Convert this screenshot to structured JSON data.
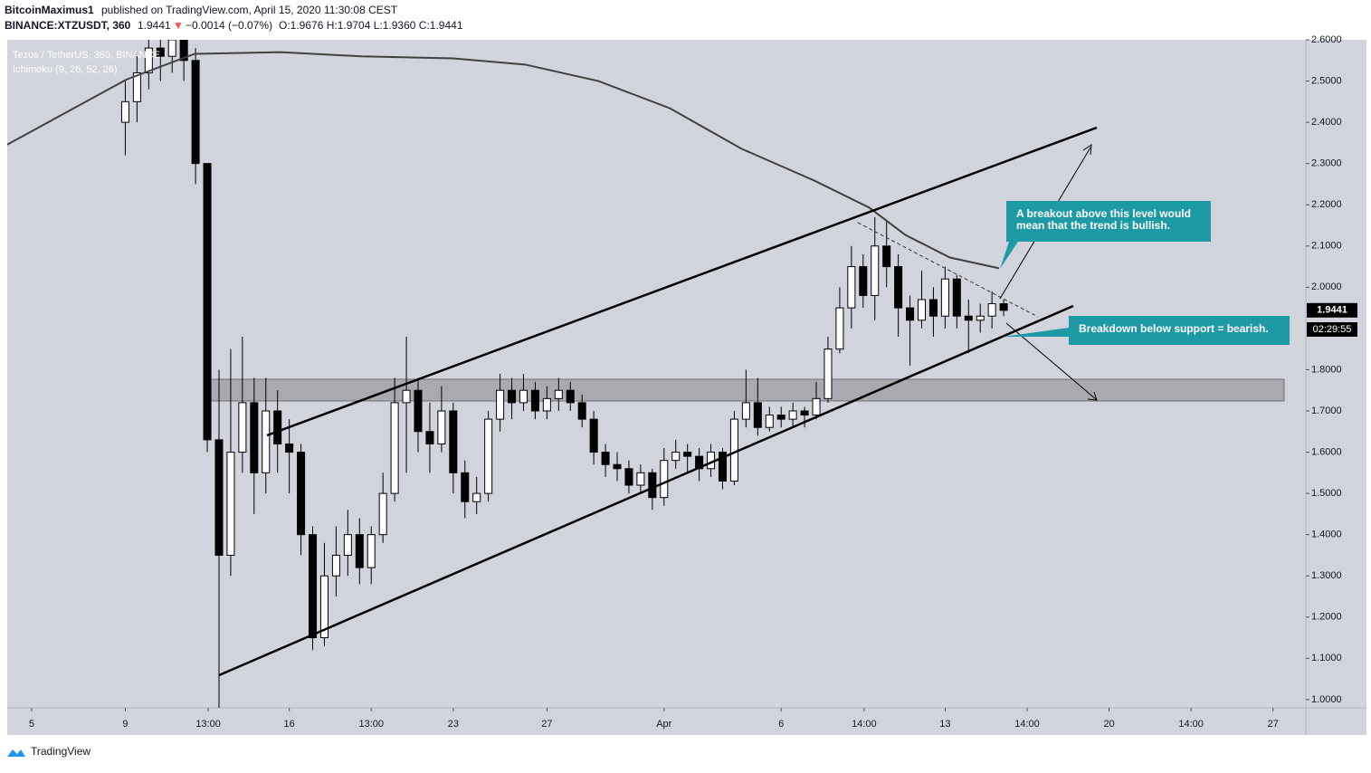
{
  "header": {
    "author": "BitcoinMaximus1",
    "published": "published on TradingView.com, April 15, 2020 11:30:08 CEST",
    "symbol": "BINANCE:XTZUSDT, 360",
    "last": "1.9441",
    "arrow": "▼",
    "change": "−0.0014 (−0.07%)",
    "ohlc": "O:1.9676 H:1.9704 L:1.9360 C:1.9441"
  },
  "legend": {
    "series": "Tezos / TetherUS, 360, BINANCE",
    "indicator": "Ichimoku (9, 26, 52, 26)"
  },
  "annotations": {
    "bullish": [
      "A breakout above this level would",
      "mean that the trend is bullish."
    ],
    "bearish": "Breakdown below support = bearish."
  },
  "countdown": "02:29:55",
  "footer": {
    "logo": "TradingView"
  },
  "chart_data": {
    "type": "candlestick",
    "x": [
      4,
      4.5,
      5,
      5.5,
      6,
      6.5,
      7,
      7.5,
      8,
      8.5,
      9,
      9.5,
      10,
      10.5,
      11,
      11.5,
      12,
      12.5,
      13,
      13.5,
      14,
      14.5,
      15,
      15.5,
      16,
      16.5,
      17,
      17.5,
      18,
      18.5,
      19,
      19.5,
      20,
      20.5,
      21,
      21.5,
      22,
      22.5,
      23,
      23.5,
      24,
      24.5,
      25,
      25.5,
      26,
      26.5,
      27,
      27.5,
      28,
      28.5,
      29,
      29.5,
      30,
      30.5,
      31,
      31.5,
      32,
      32.5,
      33,
      33.5,
      34,
      34.5,
      35,
      35.5,
      36,
      36.5,
      37,
      37.5,
      38,
      38.5,
      39,
      39.5,
      40,
      40.5,
      41,
      41.5
    ],
    "open": [
      2.4,
      2.45,
      2.52,
      2.58,
      2.56,
      2.6,
      2.55,
      2.3,
      1.63,
      1.35,
      1.6,
      1.72,
      1.55,
      1.7,
      1.62,
      1.6,
      1.4,
      1.15,
      1.3,
      1.35,
      1.4,
      1.32,
      1.4,
      1.5,
      1.72,
      1.75,
      1.65,
      1.62,
      1.7,
      1.55,
      1.48,
      1.5,
      1.68,
      1.75,
      1.72,
      1.75,
      1.7,
      1.73,
      1.75,
      1.72,
      1.68,
      1.6,
      1.57,
      1.56,
      1.52,
      1.55,
      1.49,
      1.58,
      1.6,
      1.59,
      1.56,
      1.6,
      1.53,
      1.68,
      1.72,
      1.66,
      1.69,
      1.68,
      1.7,
      1.69,
      1.73,
      1.85,
      1.95,
      2.05,
      1.98,
      2.1,
      2.05,
      1.95,
      1.92,
      1.97,
      1.93,
      2.02,
      1.93,
      1.92,
      1.93,
      1.96
    ],
    "high": [
      2.5,
      2.57,
      2.62,
      2.62,
      2.63,
      2.63,
      2.58,
      2.3,
      1.8,
      1.85,
      1.88,
      1.78,
      1.78,
      1.75,
      1.68,
      1.62,
      1.42,
      1.38,
      1.42,
      1.46,
      1.44,
      1.42,
      1.55,
      1.78,
      1.88,
      1.78,
      1.72,
      1.76,
      1.72,
      1.58,
      1.54,
      1.7,
      1.79,
      1.78,
      1.79,
      1.77,
      1.76,
      1.78,
      1.77,
      1.74,
      1.7,
      1.62,
      1.6,
      1.58,
      1.57,
      1.56,
      1.61,
      1.63,
      1.62,
      1.61,
      1.62,
      1.61,
      1.7,
      1.8,
      1.78,
      1.71,
      1.71,
      1.72,
      1.71,
      1.77,
      1.88,
      2.0,
      2.1,
      2.08,
      2.17,
      2.16,
      2.08,
      1.98,
      2.04,
      2.0,
      2.05,
      2.03,
      1.97,
      1.96,
      1.99,
      1.97
    ],
    "low": [
      2.32,
      2.4,
      2.48,
      2.5,
      2.52,
      2.5,
      2.25,
      1.6,
      0.98,
      1.3,
      1.55,
      1.45,
      1.5,
      1.55,
      1.5,
      1.35,
      1.12,
      1.13,
      1.25,
      1.3,
      1.28,
      1.28,
      1.38,
      1.48,
      1.55,
      1.6,
      1.55,
      1.6,
      1.5,
      1.44,
      1.45,
      1.48,
      1.65,
      1.68,
      1.7,
      1.68,
      1.68,
      1.7,
      1.7,
      1.66,
      1.57,
      1.54,
      1.53,
      1.5,
      1.5,
      1.46,
      1.47,
      1.56,
      1.55,
      1.53,
      1.54,
      1.51,
      1.52,
      1.66,
      1.64,
      1.65,
      1.66,
      1.66,
      1.66,
      1.68,
      1.72,
      1.84,
      1.9,
      1.95,
      1.92,
      2.0,
      1.88,
      1.81,
      1.9,
      1.88,
      1.9,
      1.9,
      1.84,
      1.89,
      1.9,
      1.93
    ],
    "close": [
      2.45,
      2.52,
      2.58,
      2.56,
      2.6,
      2.55,
      2.3,
      1.63,
      1.35,
      1.6,
      1.72,
      1.55,
      1.7,
      1.62,
      1.6,
      1.4,
      1.15,
      1.3,
      1.35,
      1.4,
      1.32,
      1.4,
      1.5,
      1.72,
      1.75,
      1.65,
      1.62,
      1.7,
      1.55,
      1.48,
      1.5,
      1.68,
      1.75,
      1.72,
      1.75,
      1.7,
      1.73,
      1.75,
      1.72,
      1.68,
      1.6,
      1.57,
      1.56,
      1.52,
      1.55,
      1.49,
      1.58,
      1.6,
      1.59,
      1.56,
      1.6,
      1.53,
      1.68,
      1.72,
      1.66,
      1.69,
      1.68,
      1.7,
      1.69,
      1.73,
      1.85,
      1.95,
      2.05,
      1.98,
      2.1,
      2.05,
      1.95,
      1.92,
      1.97,
      1.93,
      2.02,
      1.93,
      1.92,
      1.93,
      1.96,
      1.944
    ],
    "up_color": "#ffffff",
    "down_color": "#000000",
    "ma": {
      "x": [
        -1.04,
        4.06,
        6.96,
        10.63,
        14.1,
        18,
        21.07,
        24.2,
        27.25,
        30.3,
        33.4,
        35.76,
        37.3,
        39.2,
        41.3
      ],
      "values": [
        2.346,
        2.504,
        2.566,
        2.57,
        2.56,
        2.555,
        2.54,
        2.5,
        2.434,
        2.336,
        2.259,
        2.193,
        2.127,
        2.072,
        2.046
      ],
      "color": "#404040"
    },
    "last_price": 1.9441,
    "xlim": [
      -1.04,
      54.4
    ],
    "xticks": [
      {
        "value": 0,
        "label": "5"
      },
      {
        "value": 4,
        "label": "9"
      },
      {
        "value": 7.54,
        "label": "13:00"
      },
      {
        "value": 11,
        "label": "16"
      },
      {
        "value": 14.5,
        "label": "13:00"
      },
      {
        "value": 18,
        "label": "23"
      },
      {
        "value": 22,
        "label": "27"
      },
      {
        "value": 27,
        "label": "Apr"
      },
      {
        "value": 32,
        "label": "6"
      },
      {
        "value": 35.54,
        "label": "14:00"
      },
      {
        "value": 39,
        "label": "13"
      },
      {
        "value": 42.5,
        "label": "14:00"
      },
      {
        "value": 46,
        "label": "20"
      },
      {
        "value": 49.5,
        "label": "14:00"
      },
      {
        "value": 53,
        "label": "27"
      }
    ],
    "ylim": [
      0.98,
      2.6
    ],
    "yticks": [
      {
        "value": 1,
        "label": "1.0000"
      },
      {
        "value": 1.1,
        "label": "1.1000"
      },
      {
        "value": 1.2,
        "label": "1.2000"
      },
      {
        "value": 1.3,
        "label": "1.3000"
      },
      {
        "value": 1.4,
        "label": "1.4000"
      },
      {
        "value": 1.5,
        "label": "1.5000"
      },
      {
        "value": 1.6,
        "label": "1.6000"
      },
      {
        "value": 1.7,
        "label": "1.7000"
      },
      {
        "value": 1.8,
        "label": "1.8000"
      },
      {
        "value": 2,
        "label": "2.0000"
      },
      {
        "value": 2.1,
        "label": "2.1000"
      },
      {
        "value": 2.2,
        "label": "2.2000"
      },
      {
        "value": 2.3,
        "label": "2.3000"
      },
      {
        "value": 2.4,
        "label": "2.4000"
      },
      {
        "value": 2.5,
        "label": "2.5000"
      },
      {
        "value": 2.6,
        "label": "2.6000"
      }
    ]
  }
}
